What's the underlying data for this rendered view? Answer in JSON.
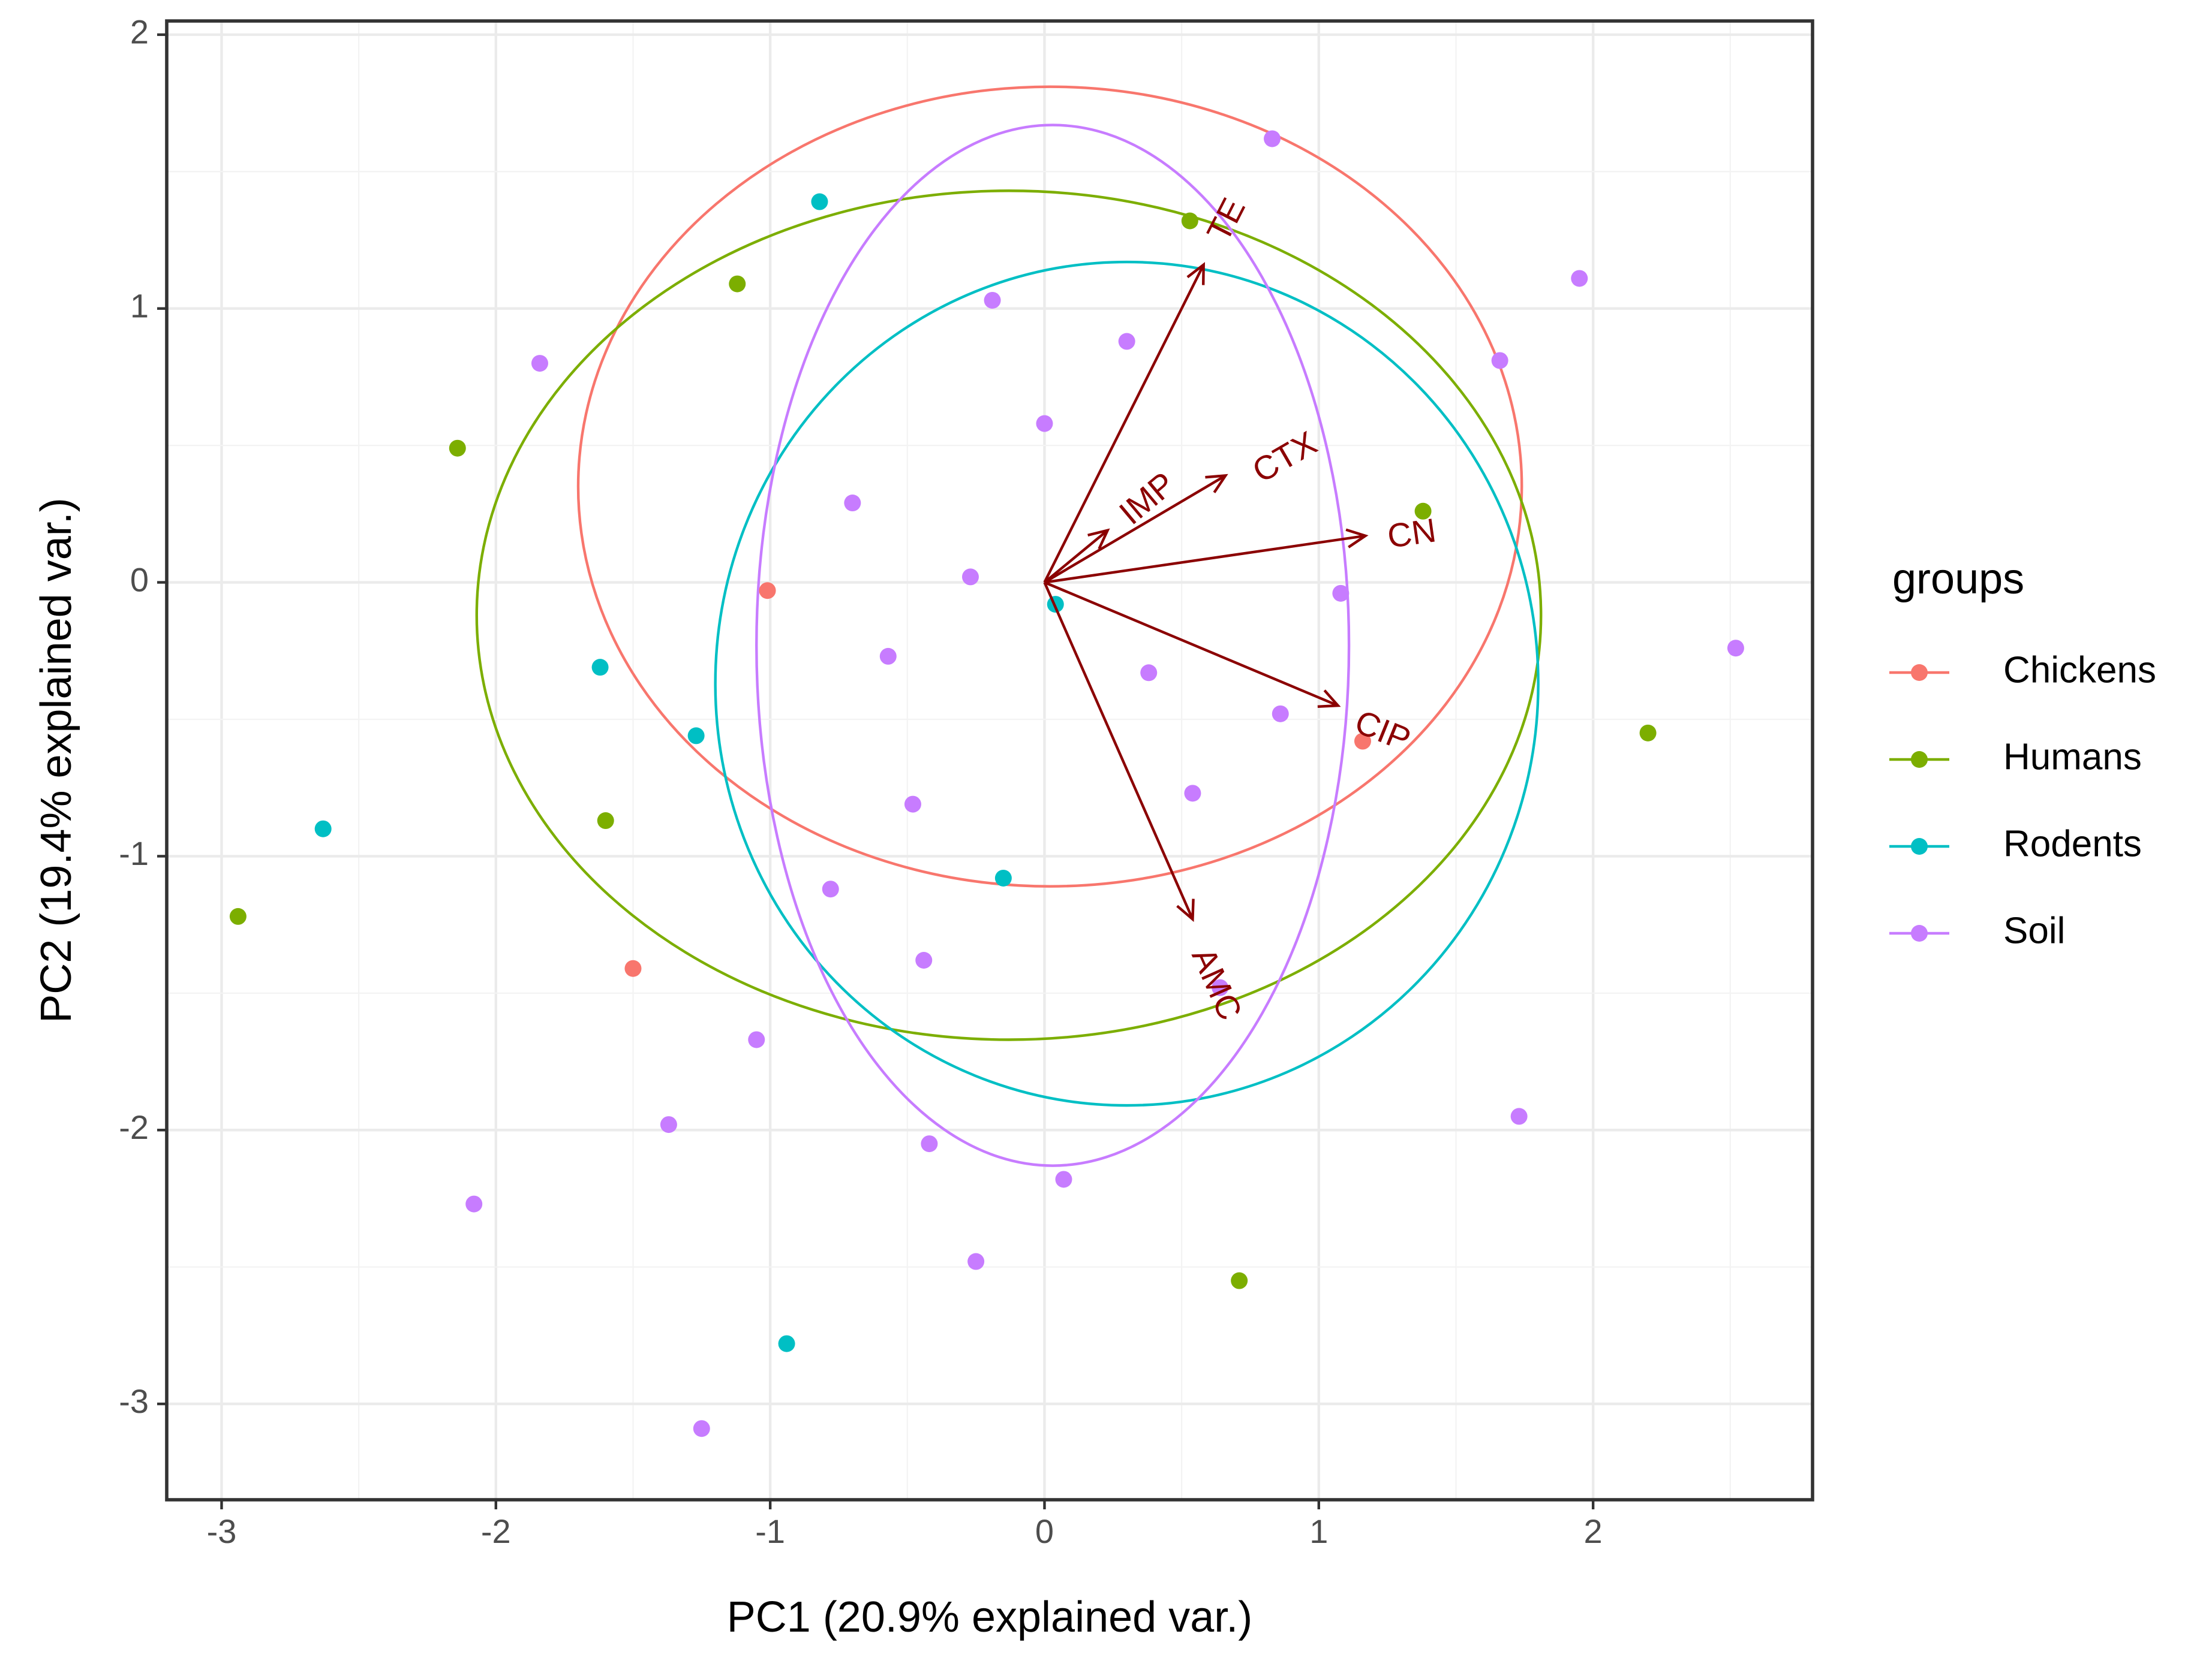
{
  "chart_data": {
    "type": "scatter",
    "subtype": "pca-biplot",
    "title": "",
    "xlabel": "PC1 (20.9% explained var.)",
    "ylabel": "PC2 (19.4% explained var.)",
    "xlim": [
      -3.2,
      2.8
    ],
    "ylim": [
      -3.35,
      2.05
    ],
    "xticks": [
      -3,
      -2,
      -1,
      0,
      1,
      2
    ],
    "yticks": [
      -3,
      -2,
      -1,
      0,
      1,
      2
    ],
    "grid": true,
    "legend": {
      "title": "groups",
      "position": "right",
      "entries": [
        "Chickens",
        "Humans",
        "Rodents",
        "Soil"
      ]
    },
    "colors": {
      "Chickens": "#F8766D",
      "Humans": "#7CAE00",
      "Rodents": "#00BFC4",
      "Soil": "#C77CFF",
      "arrow": "#8B0000"
    },
    "series": [
      {
        "name": "Chickens",
        "points": [
          [
            -1.01,
            -0.03
          ],
          [
            -1.5,
            -1.41
          ],
          [
            1.16,
            -0.58
          ]
        ]
      },
      {
        "name": "Humans",
        "points": [
          [
            -2.94,
            -1.22
          ],
          [
            -2.14,
            0.49
          ],
          [
            -1.6,
            -0.87
          ],
          [
            -1.12,
            1.09
          ],
          [
            0.53,
            1.32
          ],
          [
            1.38,
            0.26
          ],
          [
            2.2,
            -0.55
          ],
          [
            0.71,
            -2.55
          ]
        ]
      },
      {
        "name": "Rodents",
        "points": [
          [
            -2.63,
            -0.9
          ],
          [
            -1.62,
            -0.31
          ],
          [
            -1.27,
            -0.56
          ],
          [
            -0.82,
            1.39
          ],
          [
            -0.94,
            -2.78
          ],
          [
            0.04,
            -0.08
          ],
          [
            -0.15,
            -1.08
          ]
        ]
      },
      {
        "name": "Soil",
        "points": [
          [
            -1.84,
            0.8
          ],
          [
            -2.08,
            -2.27
          ],
          [
            -1.37,
            -1.98
          ],
          [
            -1.05,
            -1.67
          ],
          [
            -1.25,
            -3.09
          ],
          [
            -0.7,
            0.29
          ],
          [
            -0.57,
            -0.27
          ],
          [
            -0.78,
            -1.12
          ],
          [
            -0.48,
            -0.81
          ],
          [
            -0.44,
            -1.38
          ],
          [
            -0.42,
            -2.05
          ],
          [
            -0.27,
            0.02
          ],
          [
            -0.25,
            -2.48
          ],
          [
            -0.19,
            1.03
          ],
          [
            0.0,
            0.58
          ],
          [
            0.07,
            -2.18
          ],
          [
            0.3,
            0.88
          ],
          [
            0.38,
            -0.33
          ],
          [
            0.54,
            -0.77
          ],
          [
            0.64,
            -1.48
          ],
          [
            0.83,
            1.62
          ],
          [
            0.86,
            -0.48
          ],
          [
            1.08,
            -0.04
          ],
          [
            1.66,
            0.81
          ],
          [
            1.73,
            -1.95
          ],
          [
            1.95,
            1.11
          ],
          [
            2.52,
            -0.24
          ]
        ]
      }
    ],
    "ellipses": [
      {
        "group": "Chickens",
        "center": [
          0.02,
          0.35
        ],
        "rx": 1.72,
        "ry": 1.46
      },
      {
        "group": "Humans",
        "center": [
          -0.13,
          -0.12
        ],
        "rx": 1.94,
        "ry": 1.55
      },
      {
        "group": "Rodents",
        "center": [
          0.3,
          -0.37
        ],
        "rx": 1.5,
        "ry": 1.54
      },
      {
        "group": "Soil",
        "center": [
          0.03,
          -0.23
        ],
        "rx": 1.08,
        "ry": 1.9
      }
    ],
    "loadings": [
      {
        "name": "TE",
        "x": 0.58,
        "y": 1.16,
        "label_x": 0.67,
        "label_y": 1.32,
        "angle": -63
      },
      {
        "name": "IMP",
        "x": 0.23,
        "y": 0.19,
        "label_x": 0.38,
        "label_y": 0.3,
        "angle": -40
      },
      {
        "name": "CTX",
        "x": 0.66,
        "y": 0.39,
        "label_x": 0.88,
        "label_y": 0.45,
        "angle": -30
      },
      {
        "name": "CN",
        "x": 1.17,
        "y": 0.17,
        "label_x": 1.34,
        "label_y": 0.17,
        "angle": -8
      },
      {
        "name": "CIP",
        "x": 1.07,
        "y": -0.45,
        "label_x": 1.23,
        "label_y": -0.55,
        "angle": 22
      },
      {
        "name": "AMC",
        "x": 0.54,
        "y": -1.23,
        "label_x": 0.62,
        "label_y": -1.47,
        "angle": 66
      }
    ]
  }
}
